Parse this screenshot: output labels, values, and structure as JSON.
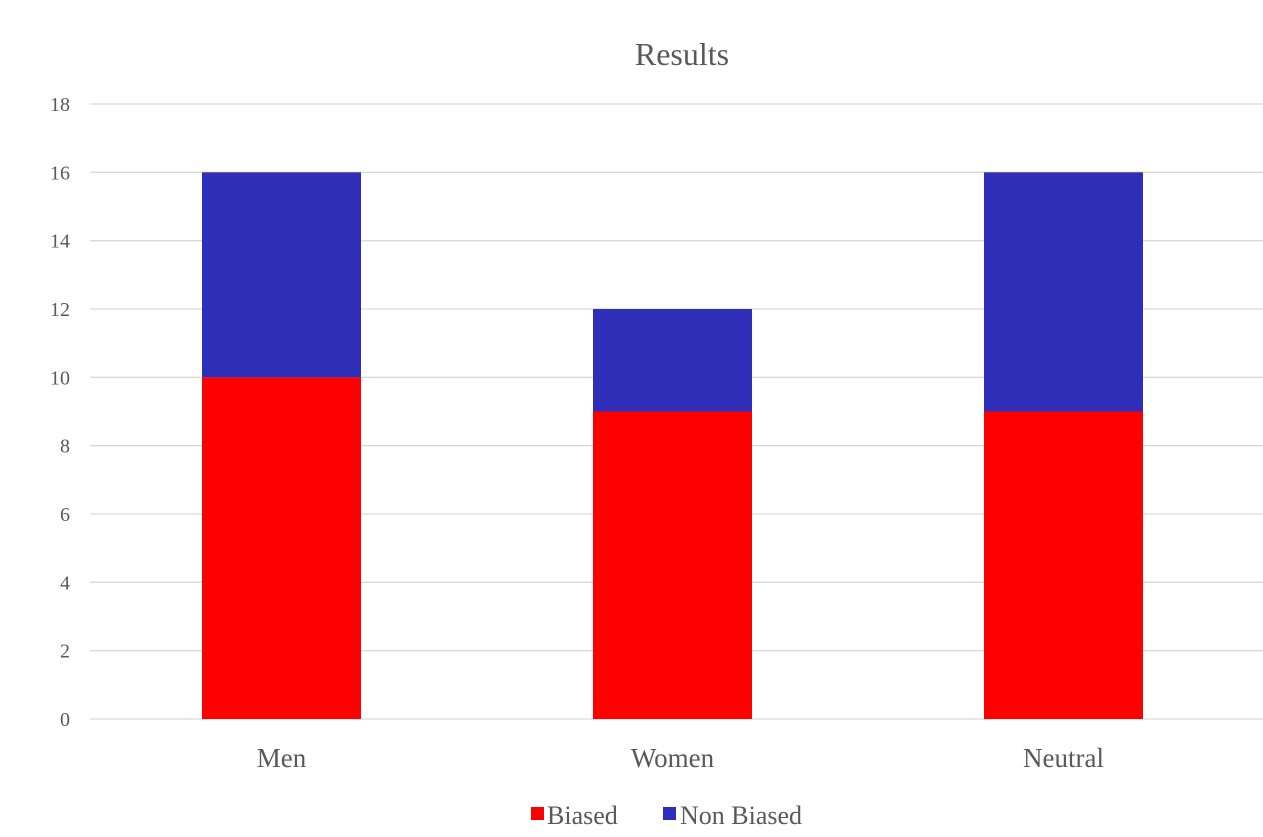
{
  "chart_data": {
    "type": "bar",
    "stacked": true,
    "title": "Results",
    "xlabel": "",
    "ylabel": "",
    "categories": [
      "Men",
      "Women",
      "Neutral"
    ],
    "series": [
      {
        "name": "Biased",
        "values": [
          10,
          9,
          9
        ],
        "color": "#ff0000"
      },
      {
        "name": "Non Biased",
        "values": [
          6,
          3,
          7
        ],
        "color": "#2e2eb8"
      }
    ],
    "ylim": [
      0,
      18
    ],
    "yticks": [
      0,
      2,
      4,
      6,
      8,
      10,
      12,
      14,
      16,
      18
    ],
    "grid": true,
    "legend_position": "bottom"
  }
}
